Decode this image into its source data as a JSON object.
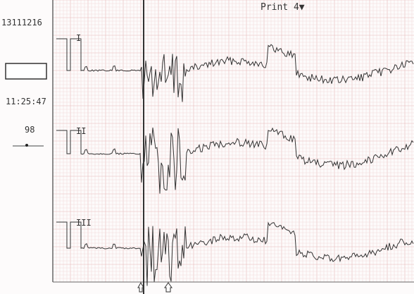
{
  "header": {
    "id": "13111216",
    "print": "Print 4▼",
    "time": "11:25:47",
    "rate": "98"
  },
  "leads": [
    {
      "label": "I"
    },
    {
      "label": "II"
    },
    {
      "label": "III"
    }
  ]
}
